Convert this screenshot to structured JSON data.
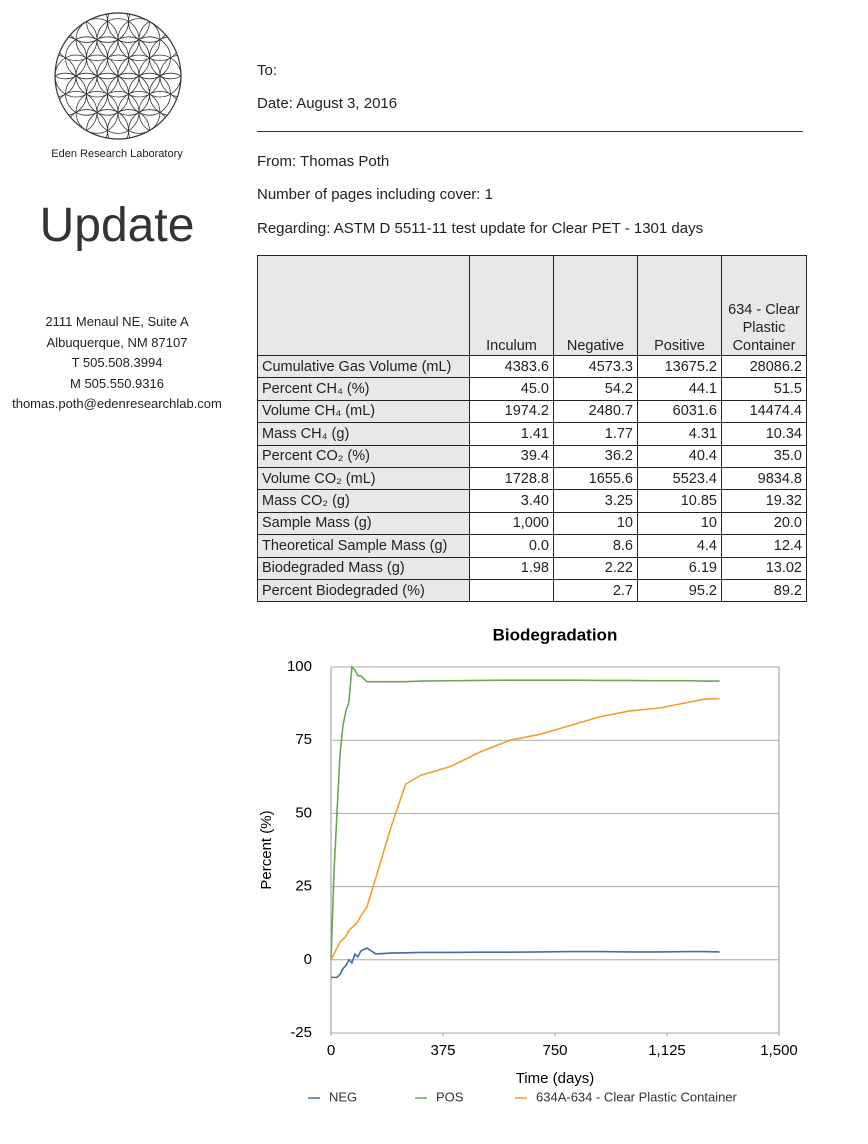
{
  "header": {
    "organization": "Eden Research Laboratory",
    "title": "Update",
    "address": [
      "2111 Menaul NE, Suite A",
      "Albuquerque, NM  87107",
      "T 505.508.3994",
      "M 505.550.9316",
      "thomas.poth@edenresearchlab.com"
    ]
  },
  "memo": {
    "to": "To:",
    "date": "Date: August 3, 2016",
    "from": "From: Thomas Poth",
    "pages": "Number of pages including cover: 1",
    "regarding": "Regarding: ASTM D 5511-11 test update for Clear PET -  1301 days"
  },
  "table": {
    "columns": [
      null,
      "Inculum",
      "Negative",
      "Positive",
      "634 - Clear Plastic Container"
    ],
    "rows": [
      [
        "Cumulative Gas Volume (mL)",
        "4383.6",
        "4573.3",
        "13675.2",
        "28086.2"
      ],
      [
        "Percent CH₄ (%)",
        "45.0",
        "54.2",
        "44.1",
        "51.5"
      ],
      [
        "Volume CH₄ (mL)",
        "1974.2",
        "2480.7",
        "6031.6",
        "14474.4"
      ],
      [
        "Mass CH₄ (g)",
        "1.41",
        "1.77",
        "4.31",
        "10.34"
      ],
      [
        "Percent CO₂ (%)",
        "39.4",
        "36.2",
        "40.4",
        "35.0"
      ],
      [
        "Volume CO₂ (mL)",
        "1728.8",
        "1655.6",
        "5523.4",
        "9834.8"
      ],
      [
        "Mass CO₂ (g)",
        "3.40",
        "3.25",
        "10.85",
        "19.32"
      ],
      [
        "Sample Mass (g)",
        "1,000",
        "10",
        "10",
        "20.0"
      ],
      [
        "Theoretical Sample Mass (g)",
        "0.0",
        "8.6",
        "4.4",
        "12.4"
      ],
      [
        "Biodegraded Mass (g)",
        "1.98",
        "2.22",
        "6.19",
        "13.02"
      ],
      [
        "Percent Biodegraded (%)",
        null,
        "2.7",
        "95.2",
        "89.2"
      ]
    ]
  },
  "chart_data": {
    "type": "line",
    "title": "Biodegradation",
    "x_label": "Time (days)",
    "y_label": "Percent (%)",
    "x": [
      0,
      10,
      20,
      30,
      40,
      50,
      60,
      70,
      80,
      90,
      100,
      120,
      150,
      200,
      250,
      300,
      400,
      500,
      600,
      700,
      800,
      900,
      1000,
      1100,
      1200,
      1250,
      1301
    ],
    "series": [
      {
        "name": "NEG",
        "color": "#3d6fa8",
        "values": [
          -6,
          -6,
          -6,
          -5,
          -3,
          -2,
          0,
          -1,
          2,
          1,
          3,
          4,
          2,
          2.3,
          2.4,
          2.5,
          2.5,
          2.6,
          2.6,
          2.7,
          2.8,
          2.8,
          2.7,
          2.7,
          2.8,
          2.8,
          2.7
        ]
      },
      {
        "name": "POS",
        "color": "#6aa84f",
        "values": [
          0,
          30,
          50,
          70,
          80,
          85,
          88,
          100,
          99,
          97,
          97,
          95,
          95,
          95,
          95,
          95.2,
          95.3,
          95.4,
          95.5,
          95.5,
          95.5,
          95.4,
          95.4,
          95.3,
          95.3,
          95.2,
          95.2
        ]
      },
      {
        "name": "634A-634 - Clear Plastic Container",
        "color": "#f0a030",
        "values": [
          0,
          2,
          4,
          6,
          7,
          8,
          10,
          11,
          12,
          13,
          15,
          18,
          28,
          45,
          60,
          63,
          66,
          71,
          75,
          77,
          80,
          83,
          85,
          86,
          88,
          89,
          89.2
        ]
      }
    ],
    "xlim": [
      0,
      1500
    ],
    "xticks": [
      0,
      375,
      750,
      {
        "value": 1125,
        "label": "1,125"
      },
      {
        "value": 1500,
        "label": "1,500"
      }
    ],
    "ylim": [
      -25,
      100
    ],
    "yticks": [
      -25,
      0,
      25,
      50,
      75,
      100
    ],
    "grid": true
  }
}
